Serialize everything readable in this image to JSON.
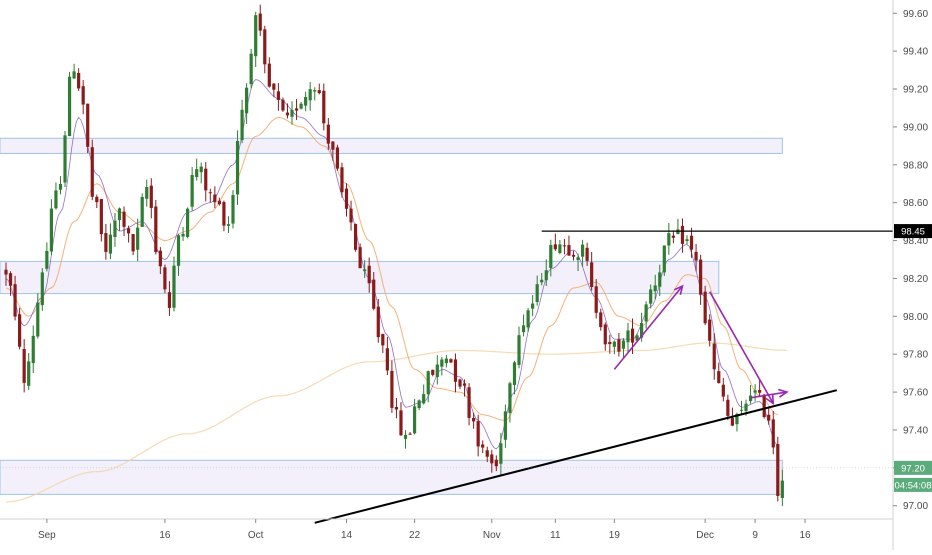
{
  "chart_data": {
    "type": "candlestick",
    "y_axis": {
      "ticks": [
        "99.60",
        "99.40",
        "99.20",
        "99.00",
        "98.80",
        "98.60",
        "98.40",
        "98.20",
        "98.00",
        "97.80",
        "97.60",
        "97.40",
        "97.20",
        "97.00"
      ],
      "range": [
        96.93,
        99.67
      ]
    },
    "x_axis": {
      "tick_labels": [
        {
          "label": "Sep",
          "index": 9
        },
        {
          "label": "16",
          "index": 35
        },
        {
          "label": "Oct",
          "index": 55
        },
        {
          "label": "14",
          "index": 75
        },
        {
          "label": "22",
          "index": 90
        },
        {
          "label": "Nov",
          "index": 107
        },
        {
          "label": "11",
          "index": 121
        },
        {
          "label": "19",
          "index": 134
        },
        {
          "label": "Dec",
          "index": 154
        },
        {
          "label": "9",
          "index": 165
        },
        {
          "label": "16",
          "index": 176
        }
      ]
    },
    "price_tags": [
      {
        "text": "98.45",
        "value": 98.45,
        "bg": "#000000"
      },
      {
        "text": "97.20",
        "value": 97.2,
        "bg": "#5cab7d"
      },
      {
        "text": "04:54:08",
        "value": 97.11,
        "bg": "#5cab7d"
      }
    ],
    "zones": [
      {
        "index_start": -3,
        "index_end": 171,
        "top": 98.94,
        "bottom": 98.86
      },
      {
        "index_start": -3,
        "index_end": 157,
        "top": 98.29,
        "bottom": 98.12
      },
      {
        "index_start": -3,
        "index_end": 171,
        "top": 97.24,
        "bottom": 97.06
      }
    ],
    "horizontal_line": {
      "value": 98.45,
      "index_start": 118
    },
    "trendline": {
      "points": [
        [
          68,
          96.91
        ],
        [
          183,
          97.61
        ]
      ]
    },
    "arrows": [
      {
        "from": [
          134,
          97.72
        ],
        "to": [
          149,
          98.16
        ]
      },
      {
        "from": [
          155,
          98.13
        ],
        "to": [
          169,
          97.54
        ]
      },
      {
        "from": [
          164,
          97.57
        ],
        "to": [
          172,
          97.6
        ]
      }
    ],
    "colors": {
      "up": "#26a69a",
      "down": "#ef5350",
      "zone_fill": "#f3f0fb",
      "zone_stroke": "#9fc5e8",
      "trendline": "#000000",
      "arrow": "#9c27b0",
      "ma_fast": "#7e57c2",
      "ma_mid": "#f4a460",
      "ma_slow": "#f5d5a6",
      "candle_up": "#2e7d32",
      "candle_down": "#8b1a1a"
    },
    "key_points": [
      [
        0,
        98.24
      ],
      [
        3,
        97.87
      ],
      [
        4,
        97.62
      ],
      [
        6,
        97.91
      ],
      [
        8,
        98.25
      ],
      [
        11,
        98.63
      ],
      [
        15,
        99.33
      ],
      [
        17,
        99.12
      ],
      [
        19,
        98.63
      ],
      [
        22,
        98.35
      ],
      [
        25,
        98.55
      ],
      [
        28,
        98.35
      ],
      [
        31,
        98.68
      ],
      [
        34,
        98.27
      ],
      [
        36,
        98.04
      ],
      [
        38,
        98.43
      ],
      [
        42,
        98.78
      ],
      [
        46,
        98.6
      ],
      [
        49,
        98.5
      ],
      [
        52,
        99.1
      ],
      [
        55,
        99.55
      ],
      [
        58,
        99.2
      ],
      [
        62,
        99.02
      ],
      [
        65,
        99.15
      ],
      [
        68,
        99.24
      ],
      [
        71,
        98.95
      ],
      [
        75,
        98.55
      ],
      [
        79,
        98.2
      ],
      [
        83,
        97.85
      ],
      [
        86,
        97.46
      ],
      [
        88,
        97.34
      ],
      [
        91,
        97.58
      ],
      [
        94,
        97.7
      ],
      [
        97,
        97.8
      ],
      [
        100,
        97.66
      ],
      [
        103,
        97.45
      ],
      [
        105,
        97.27
      ],
      [
        108,
        97.21
      ],
      [
        111,
        97.65
      ],
      [
        113,
        97.95
      ],
      [
        116,
        98.07
      ],
      [
        119,
        98.29
      ],
      [
        121,
        98.4
      ],
      [
        124,
        98.37
      ],
      [
        127,
        98.34
      ],
      [
        130,
        98.05
      ],
      [
        133,
        97.82
      ],
      [
        135,
        97.85
      ],
      [
        139,
        97.92
      ],
      [
        142,
        98.15
      ],
      [
        146,
        98.39
      ],
      [
        149,
        98.42
      ],
      [
        152,
        98.31
      ],
      [
        154,
        97.94
      ],
      [
        157,
        97.62
      ],
      [
        160,
        97.42
      ],
      [
        162,
        97.48
      ],
      [
        164,
        97.62
      ],
      [
        166,
        97.55
      ],
      [
        168,
        97.47
      ],
      [
        169,
        97.33
      ],
      [
        170,
        97.08
      ],
      [
        171,
        97.18
      ]
    ],
    "ma_fast_points": [
      [
        0,
        98.2
      ],
      [
        4,
        97.95
      ],
      [
        8,
        98.1
      ],
      [
        12,
        98.55
      ],
      [
        16,
        99.05
      ],
      [
        20,
        98.75
      ],
      [
        25,
        98.45
      ],
      [
        30,
        98.5
      ],
      [
        35,
        98.3
      ],
      [
        40,
        98.55
      ],
      [
        45,
        98.6
      ],
      [
        50,
        98.8
      ],
      [
        55,
        99.25
      ],
      [
        60,
        99.15
      ],
      [
        65,
        99.05
      ],
      [
        70,
        98.95
      ],
      [
        75,
        98.6
      ],
      [
        80,
        98.2
      ],
      [
        84,
        97.9
      ],
      [
        88,
        97.52
      ],
      [
        92,
        97.55
      ],
      [
        96,
        97.72
      ],
      [
        100,
        97.68
      ],
      [
        104,
        97.45
      ],
      [
        108,
        97.3
      ],
      [
        112,
        97.6
      ],
      [
        116,
        97.98
      ],
      [
        120,
        98.25
      ],
      [
        125,
        98.35
      ],
      [
        130,
        98.1
      ],
      [
        134,
        97.88
      ],
      [
        138,
        97.88
      ],
      [
        142,
        98.05
      ],
      [
        146,
        98.3
      ],
      [
        150,
        98.38
      ],
      [
        154,
        98.1
      ],
      [
        158,
        97.72
      ],
      [
        162,
        97.52
      ],
      [
        166,
        97.55
      ],
      [
        170,
        97.32
      ]
    ],
    "ma_mid_points": [
      [
        0,
        98.15
      ],
      [
        5,
        98.0
      ],
      [
        10,
        98.15
      ],
      [
        15,
        98.5
      ],
      [
        20,
        98.7
      ],
      [
        25,
        98.55
      ],
      [
        30,
        98.48
      ],
      [
        35,
        98.4
      ],
      [
        40,
        98.45
      ],
      [
        45,
        98.55
      ],
      [
        50,
        98.7
      ],
      [
        55,
        98.95
      ],
      [
        60,
        99.05
      ],
      [
        65,
        99.0
      ],
      [
        70,
        98.9
      ],
      [
        75,
        98.7
      ],
      [
        80,
        98.4
      ],
      [
        85,
        98.05
      ],
      [
        90,
        97.72
      ],
      [
        95,
        97.62
      ],
      [
        100,
        97.6
      ],
      [
        105,
        97.48
      ],
      [
        110,
        97.45
      ],
      [
        115,
        97.68
      ],
      [
        120,
        97.95
      ],
      [
        125,
        98.15
      ],
      [
        130,
        98.18
      ],
      [
        135,
        98.0
      ],
      [
        140,
        97.95
      ],
      [
        145,
        98.08
      ],
      [
        150,
        98.22
      ],
      [
        154,
        98.2
      ],
      [
        158,
        97.95
      ],
      [
        162,
        97.72
      ],
      [
        166,
        97.58
      ],
      [
        170,
        97.48
      ]
    ],
    "ma_slow_points": [
      [
        0,
        97.02
      ],
      [
        20,
        97.18
      ],
      [
        40,
        97.38
      ],
      [
        60,
        97.58
      ],
      [
        80,
        97.76
      ],
      [
        100,
        97.82
      ],
      [
        120,
        97.8
      ],
      [
        140,
        97.82
      ],
      [
        155,
        97.86
      ],
      [
        172,
        97.82
      ]
    ]
  }
}
